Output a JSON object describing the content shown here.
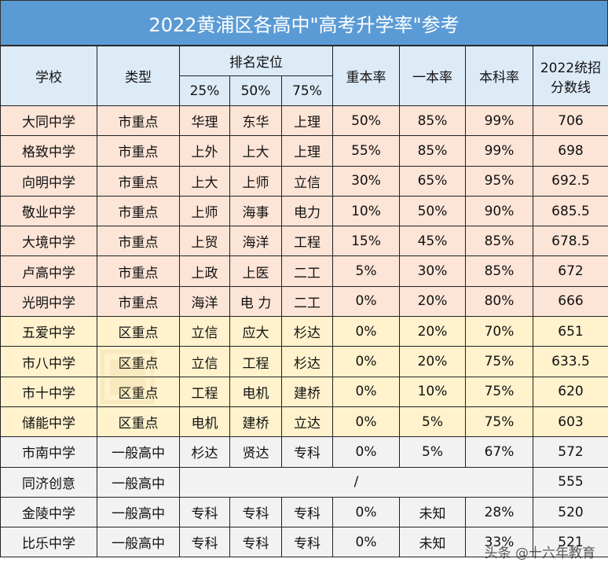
{
  "title": "2022黄浦区各高中\"高考升学率\"参考",
  "headers": {
    "school": "学校",
    "type": "类型",
    "ranking": "排名定位",
    "p25": "25%",
    "p50": "50%",
    "p75": "75%",
    "key_rate": "重本率",
    "tier1_rate": "一本率",
    "bachelor_rate": "本科率",
    "score_line_1": "2022统招",
    "score_line_2": "分数线"
  },
  "colors": {
    "title_bg": "#5b9bd5",
    "header_bg": "#ddebf7",
    "city_key": "#fce4d6",
    "district_key": "#fff2cc",
    "general": "#f2f2f2"
  },
  "rows": [
    {
      "school": "大同中学",
      "type": "市重点",
      "p25": "华理",
      "p50": "东华",
      "p75": "上理",
      "key": "50%",
      "tier1": "85%",
      "bachelor": "99%",
      "score": "706",
      "group": "pink"
    },
    {
      "school": "格致中学",
      "type": "市重点",
      "p25": "上外",
      "p50": "上大",
      "p75": "上理",
      "key": "55%",
      "tier1": "85%",
      "bachelor": "99%",
      "score": "698",
      "group": "pink"
    },
    {
      "school": "向明中学",
      "type": "市重点",
      "p25": "上大",
      "p50": "上师",
      "p75": "立信",
      "key": "30%",
      "tier1": "65%",
      "bachelor": "95%",
      "score": "692.5",
      "group": "pink"
    },
    {
      "school": "敬业中学",
      "type": "市重点",
      "p25": "上师",
      "p50": "海事",
      "p75": "电力",
      "key": "10%",
      "tier1": "50%",
      "bachelor": "90%",
      "score": "685.5",
      "group": "pink"
    },
    {
      "school": "大境中学",
      "type": "市重点",
      "p25": "上贸",
      "p50": "海洋",
      "p75": "工程",
      "key": "15%",
      "tier1": "45%",
      "bachelor": "85%",
      "score": "678.5",
      "group": "pink"
    },
    {
      "school": "卢高中学",
      "type": "市重点",
      "p25": "上政",
      "p50": "上医",
      "p75": "二工",
      "key": "5%",
      "tier1": "30%",
      "bachelor": "85%",
      "score": "672",
      "group": "pink"
    },
    {
      "school": "光明中学",
      "type": "市重点",
      "p25": "海洋",
      "p50": "电 力",
      "p75": "二工",
      "key": "0%",
      "tier1": "20%",
      "bachelor": "80%",
      "score": "666",
      "group": "pink"
    },
    {
      "school": "五爱中学",
      "type": "区重点",
      "p25": "立信",
      "p50": "应大",
      "p75": "杉达",
      "key": "0%",
      "tier1": "20%",
      "bachelor": "70%",
      "score": "651",
      "group": "yellow"
    },
    {
      "school": "市八中学",
      "type": "区重点",
      "p25": "立信",
      "p50": "工程",
      "p75": "杉达",
      "key": "0%",
      "tier1": "20%",
      "bachelor": "75%",
      "score": "633.5",
      "group": "yellow"
    },
    {
      "school": "市十中学",
      "type": "区重点",
      "p25": "工程",
      "p50": "电机",
      "p75": "建桥",
      "key": "0%",
      "tier1": "10%",
      "bachelor": "75%",
      "score": "620",
      "group": "yellow"
    },
    {
      "school": "储能中学",
      "type": "区重点",
      "p25": "电机",
      "p50": "建桥",
      "p75": "立达",
      "key": "0%",
      "tier1": "5%",
      "bachelor": "75%",
      "score": "603",
      "group": "yellow"
    },
    {
      "school": "市南中学",
      "type": "一般高中",
      "p25": "杉达",
      "p50": "贤达",
      "p75": "专科",
      "key": "0%",
      "tier1": "5%",
      "bachelor": "67%",
      "score": "572",
      "group": "gray"
    },
    {
      "school": "同济创意",
      "type": "一般高中",
      "merged": "/",
      "score": "555",
      "group": "gray"
    },
    {
      "school": "金陵中学",
      "type": "一般高中",
      "p25": "专科",
      "p50": "专科",
      "p75": "专科",
      "key": "0%",
      "tier1": "未知",
      "bachelor": "28%",
      "score": "520",
      "group": "gray"
    },
    {
      "school": "比乐中学",
      "type": "一般高中",
      "p25": "专科",
      "p50": "专科",
      "p75": "专科",
      "key": "0%",
      "tier1": "未知",
      "bachelor": "33%",
      "score": "521",
      "group": "gray"
    }
  ],
  "watermark": "头条 @十六年教育"
}
